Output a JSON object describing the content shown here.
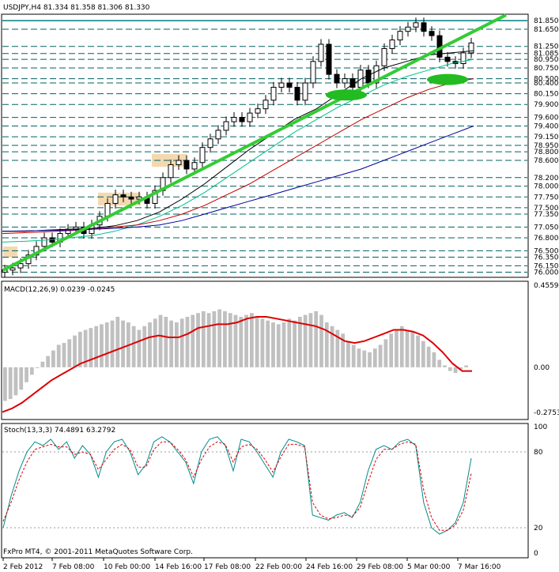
{
  "colors": {
    "background": "#ffffff",
    "frame": "#000000",
    "grid_dash": "#006060",
    "resistance_line": "#008080",
    "trendline": "#33cc33",
    "ellipse": "#22bb22",
    "ma_fast": "#000000",
    "ma_mid": "#00c08a",
    "ma_slow": "#c00000",
    "ma_long": "#000099",
    "ma_long2": "#660066",
    "highlight": "#f4d9b0",
    "macd_hist": "#c0c0c0",
    "macd_signal": "#dd0000",
    "stoch_main": "#008b8b",
    "stoch_signal": "#dd0000"
  },
  "header": {
    "main_title": "USDJPY,H4  81.334 81.358 81.306 81.330",
    "macd_title": "MACD(12,26,9) 0.0239 -0.0245",
    "stoch_title": "Stoch(13,3,3) 74.4891 63.2792",
    "copyright": "FxPro MT4, © 2001-2011 MetaQuotes Software Corp."
  },
  "chart_data": [
    {
      "type": "candlestick",
      "title": "USDJPY,H4",
      "ohlc": {
        "open": 81.334,
        "high": 81.358,
        "low": 81.306,
        "close": 81.33
      },
      "ylim": [
        75.9,
        81.98
      ],
      "y_tick_labels": [
        "81.850",
        "81.650",
        "81.250",
        "81.085",
        "80.950",
        "80.750",
        "80.500",
        "80.400",
        "80.150",
        "79.900",
        "79.600",
        "79.400",
        "79.150",
        "78.950",
        "78.800",
        "78.600",
        "78.200",
        "78.000",
        "77.750",
        "77.500",
        "77.350",
        "77.050",
        "76.800",
        "76.500",
        "76.350",
        "76.150",
        "76.000"
      ],
      "x_tick_labels": [
        "2 Feb 2012",
        "7 Feb 08:00",
        "10 Feb 00:00",
        "14 Feb 16:00",
        "17 Feb 08:00",
        "22 Feb 00:00",
        "24 Feb 16:00",
        "29 Feb 08:00",
        "5 Mar 00:00",
        "7 Mar 16:00"
      ],
      "close_path": [
        76.05,
        76.1,
        76.2,
        76.4,
        76.6,
        76.8,
        76.7,
        76.9,
        77.0,
        77.05,
        76.9,
        77.1,
        77.3,
        77.6,
        77.8,
        77.75,
        77.7,
        77.75,
        77.6,
        77.9,
        78.2,
        78.5,
        78.6,
        78.4,
        78.55,
        78.9,
        79.1,
        79.3,
        79.5,
        79.6,
        79.5,
        79.7,
        79.8,
        80.0,
        80.3,
        80.4,
        80.3,
        80.0,
        80.4,
        80.9,
        81.3,
        80.6,
        80.4,
        80.5,
        80.3,
        80.7,
        80.4,
        80.8,
        81.2,
        81.4,
        81.6,
        81.7,
        81.8,
        81.6,
        81.5,
        81.0,
        80.9,
        80.85,
        81.1,
        81.33
      ],
      "series": [
        {
          "name": "",
          "values": [
            76.95,
            76.95,
            76.98,
            77.0,
            77.02,
            77.08,
            77.2,
            77.4,
            77.7,
            78.05,
            78.45,
            78.85,
            79.2,
            79.55,
            79.8,
            80.15,
            80.5,
            80.75,
            80.9,
            81.05,
            81.1,
            81.15
          ]
        },
        {
          "name": "",
          "values": [
            76.7,
            76.72,
            76.75,
            76.8,
            76.85,
            76.95,
            77.1,
            77.3,
            77.55,
            77.85,
            78.2,
            78.55,
            78.9,
            79.25,
            79.55,
            79.85,
            80.1,
            80.35,
            80.55,
            80.7,
            80.85,
            80.95
          ]
        },
        {
          "name": "",
          "values": [
            76.9,
            76.92,
            76.94,
            76.97,
            77.0,
            77.05,
            77.1,
            77.2,
            77.35,
            77.55,
            77.8,
            78.05,
            78.35,
            78.65,
            78.95,
            79.25,
            79.55,
            79.8,
            80.05,
            80.25,
            80.4,
            80.5
          ]
        },
        {
          "name": "",
          "values": [
            76.95,
            76.96,
            76.97,
            76.98,
            77.0,
            77.02,
            77.05,
            77.1,
            77.2,
            77.35,
            77.5,
            77.65,
            77.8,
            77.95,
            78.1,
            78.25,
            78.4,
            78.6,
            78.8,
            79.0,
            79.2,
            79.4
          ]
        }
      ],
      "highlight_boxes": [
        {
          "from": 76.35,
          "to": 76.6
        },
        {
          "from": 77.55,
          "to": 77.85
        },
        {
          "from": 78.45,
          "to": 78.75
        }
      ]
    },
    {
      "type": "bar",
      "title": "MACD(12,26,9) 0.0239 -0.0245",
      "ylim": [
        -0.2753,
        0.4559
      ],
      "y_tick_labels": [
        "0.4559",
        "0.00",
        "-0.2753"
      ],
      "values": [
        -0.18,
        -0.17,
        -0.15,
        -0.12,
        -0.08,
        -0.04,
        0.0,
        0.03,
        0.06,
        0.09,
        0.12,
        0.13,
        0.15,
        0.17,
        0.19,
        0.2,
        0.21,
        0.22,
        0.23,
        0.24,
        0.25,
        0.27,
        0.25,
        0.24,
        0.22,
        0.2,
        0.22,
        0.24,
        0.26,
        0.28,
        0.27,
        0.25,
        0.24,
        0.26,
        0.27,
        0.28,
        0.29,
        0.3,
        0.29,
        0.3,
        0.31,
        0.3,
        0.29,
        0.28,
        0.27,
        0.28,
        0.29,
        0.27,
        0.26,
        0.25,
        0.24,
        0.23,
        0.24,
        0.26,
        0.25,
        0.27,
        0.28,
        0.29,
        0.3,
        0.28,
        0.24,
        0.22,
        0.2,
        0.18,
        0.14,
        0.12,
        0.1,
        0.09,
        0.08,
        0.1,
        0.12,
        0.15,
        0.18,
        0.2,
        0.22,
        0.2,
        0.19,
        0.17,
        0.14,
        0.11,
        0.08,
        0.04,
        0.01,
        -0.02,
        -0.03,
        -0.01,
        0.01
      ],
      "signal": [
        -0.24,
        -0.22,
        -0.19,
        -0.15,
        -0.11,
        -0.07,
        -0.04,
        -0.01,
        0.02,
        0.04,
        0.06,
        0.08,
        0.1,
        0.12,
        0.14,
        0.16,
        0.17,
        0.16,
        0.16,
        0.18,
        0.21,
        0.22,
        0.23,
        0.23,
        0.24,
        0.26,
        0.27,
        0.27,
        0.26,
        0.25,
        0.24,
        0.23,
        0.22,
        0.2,
        0.17,
        0.14,
        0.13,
        0.14,
        0.16,
        0.18,
        0.2,
        0.2,
        0.19,
        0.17,
        0.13,
        0.08,
        0.02,
        -0.02,
        -0.02
      ]
    },
    {
      "type": "line",
      "title": "Stoch(13,3,3) 74.4891 63.2792",
      "ylim": [
        0,
        100
      ],
      "y_tick_labels": [
        "100",
        "80",
        "20",
        "0"
      ],
      "series": [
        {
          "name": "",
          "values": [
            20,
            45,
            65,
            80,
            88,
            85,
            90,
            82,
            88,
            75,
            85,
            78,
            60,
            80,
            88,
            90,
            80,
            62,
            70,
            88,
            92,
            88,
            80,
            72,
            55,
            80,
            90,
            92,
            85,
            65,
            90,
            88,
            80,
            70,
            60,
            80,
            90,
            88,
            85,
            30,
            28,
            26,
            30,
            32,
            28,
            40,
            65,
            82,
            85,
            82,
            88,
            90,
            85,
            40,
            20,
            15,
            18,
            24,
            40,
            75
          ]
        },
        {
          "name": "",
          "values": [
            25,
            40,
            58,
            72,
            82,
            84,
            86,
            84,
            84,
            78,
            80,
            78,
            66,
            74,
            82,
            86,
            82,
            68,
            68,
            82,
            88,
            88,
            82,
            74,
            60,
            74,
            84,
            88,
            86,
            72,
            84,
            86,
            82,
            74,
            64,
            76,
            86,
            86,
            84,
            40,
            30,
            27,
            28,
            30,
            29,
            36,
            56,
            74,
            82,
            82,
            86,
            88,
            86,
            50,
            28,
            18,
            18,
            22,
            34,
            63
          ]
        }
      ]
    }
  ]
}
